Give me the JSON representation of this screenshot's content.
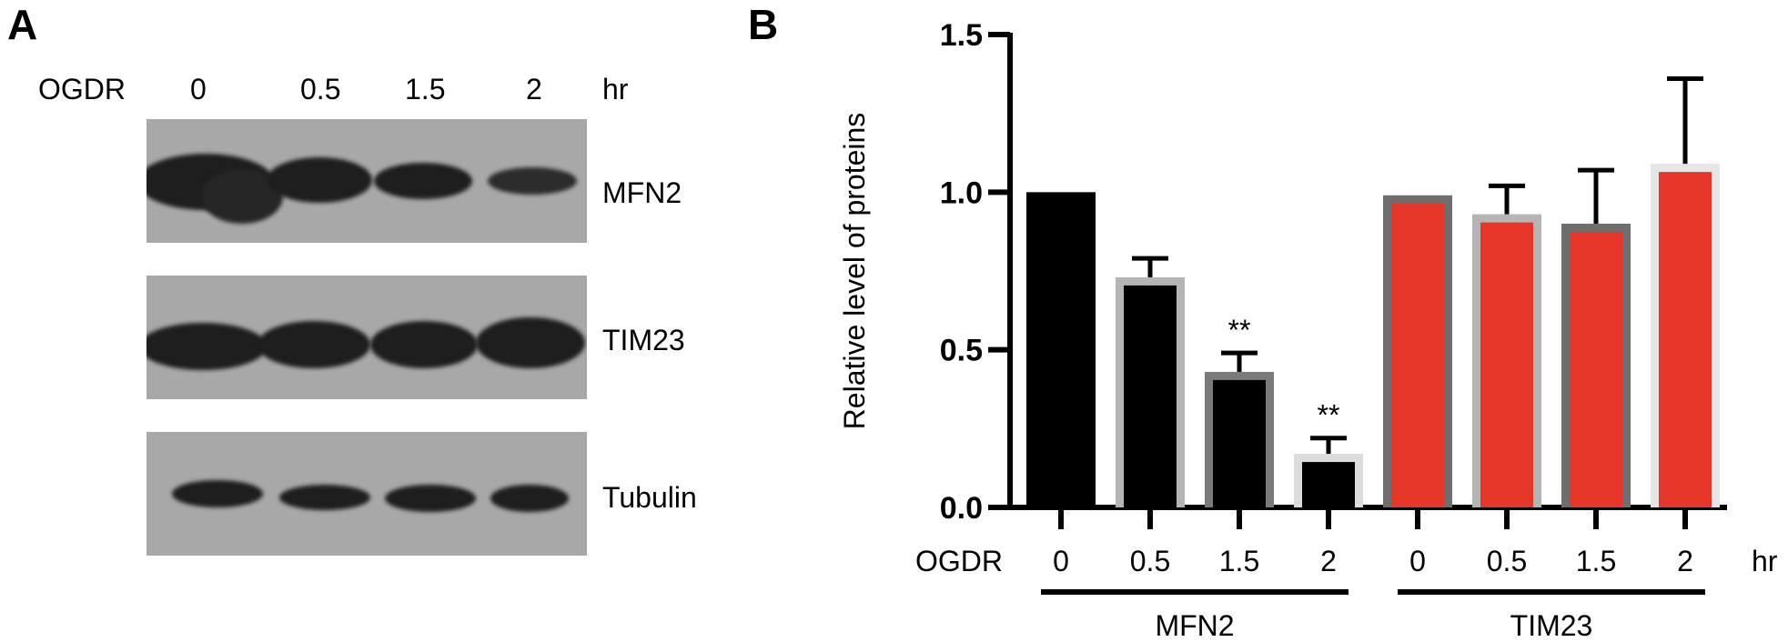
{
  "panel_a": {
    "letter": "A",
    "treatment_label": "OGDR",
    "time_points": [
      "0",
      "0.5",
      "1.5",
      "2"
    ],
    "time_unit": "hr",
    "blots": [
      {
        "label": "MFN2"
      },
      {
        "label": "TIM23"
      },
      {
        "label": "Tubulin"
      }
    ]
  },
  "panel_b": {
    "letter": "B",
    "treatment_label": "OGDR",
    "time_unit": "hr"
  },
  "chart_data": {
    "type": "bar",
    "ylabel": "Relative level of  proteins",
    "ylim": [
      0,
      1.5
    ],
    "yticks": [
      "0.0",
      "0.5",
      "1.0",
      "1.5"
    ],
    "ytick_values": [
      0.0,
      0.5,
      1.0,
      1.5
    ],
    "groups": [
      {
        "name": "MFN2",
        "categories": [
          "0",
          "0.5",
          "1.5",
          "2"
        ],
        "values": [
          1.0,
          0.73,
          0.43,
          0.17
        ],
        "errors": [
          0,
          0.06,
          0.06,
          0.05
        ],
        "annotations": [
          "",
          "",
          "**",
          "**"
        ],
        "fill_color": "#000000",
        "border_colors": [
          "#000000",
          "#b5b5b5",
          "#7a7a7a",
          "#dcdcdc"
        ]
      },
      {
        "name": "TIM23",
        "categories": [
          "0",
          "0.5",
          "1.5",
          "2"
        ],
        "values": [
          0.99,
          0.93,
          0.9,
          1.09
        ],
        "errors": [
          0,
          0.09,
          0.17,
          0.27
        ],
        "annotations": [
          "",
          "",
          "",
          ""
        ],
        "fill_color": "#e8352a",
        "border_colors": [
          "#6e6e6e",
          "#b5b5b5",
          "#6e6e6e",
          "#e6e6e6"
        ]
      }
    ]
  }
}
